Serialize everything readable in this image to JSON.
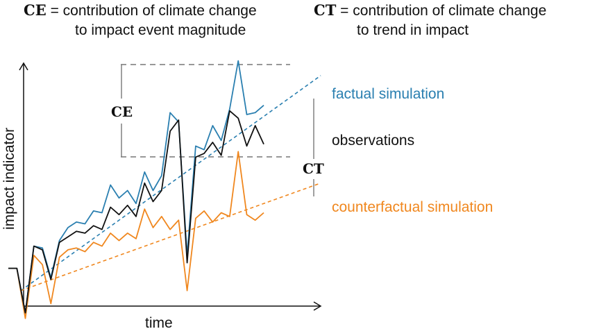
{
  "headers": {
    "ce": {
      "symbol": "CE",
      "line1": " = contribution of climate change",
      "line2": "to impact event magnitude"
    },
    "ct": {
      "symbol": "CT",
      "line1": " = contribution of climate change",
      "line2": "to trend in impact"
    }
  },
  "axes": {
    "xlabel": "time",
    "ylabel": "impact indicator"
  },
  "annotations": {
    "ce_symbol": "CE",
    "ct_symbol": "CT"
  },
  "colors": {
    "factual": "#2a7fb0",
    "observations": "#111111",
    "counterfactual": "#f0871e",
    "guides": "#777777"
  },
  "chart_data": {
    "type": "line",
    "xlabel": "time",
    "ylabel": "impact indicator",
    "series": [
      {
        "name": "factual simulation",
        "values": [
          1.4,
          1.4,
          -1.0,
          2.6,
          2.5,
          0.9,
          2.9,
          3.6,
          3.9,
          3.8,
          4.5,
          4.4,
          5.9,
          5.2,
          5.6,
          4.9,
          6.6,
          5.6,
          6.4,
          9.8,
          9.3,
          2.1,
          8.0,
          7.8,
          9.1,
          8.3,
          10.0,
          12.6,
          9.7,
          9.8,
          10.2
        ]
      },
      {
        "name": "observations",
        "values": [
          1.4,
          1.4,
          -1.0,
          2.6,
          2.4,
          0.8,
          2.8,
          3.1,
          3.4,
          3.3,
          3.7,
          3.5,
          4.7,
          4.3,
          4.8,
          4.2,
          6.0,
          5.0,
          5.6,
          8.8,
          9.4,
          1.7,
          7.4,
          7.6,
          8.2,
          7.5,
          9.9,
          9.5,
          8.0,
          9.1,
          8.1
        ]
      },
      {
        "name": "counterfactual simulation",
        "values": [
          1.4,
          1.4,
          -1.3,
          2.1,
          1.6,
          -0.5,
          2.0,
          2.4,
          2.5,
          2.3,
          2.8,
          2.6,
          3.3,
          2.9,
          3.3,
          3.0,
          4.6,
          3.6,
          4.2,
          3.5,
          4.0,
          0.2,
          4.1,
          4.5,
          3.9,
          4.4,
          4.2,
          7.7,
          4.3,
          4.0,
          4.4
        ]
      },
      {
        "name": "factual trend",
        "values": [
          0.2,
          11.8
        ]
      },
      {
        "name": "counterfactual trend",
        "values": [
          0.2,
          6.0
        ]
      }
    ],
    "series_labels": [
      "factual simulation",
      "observations",
      "counterfactual simulation"
    ]
  }
}
